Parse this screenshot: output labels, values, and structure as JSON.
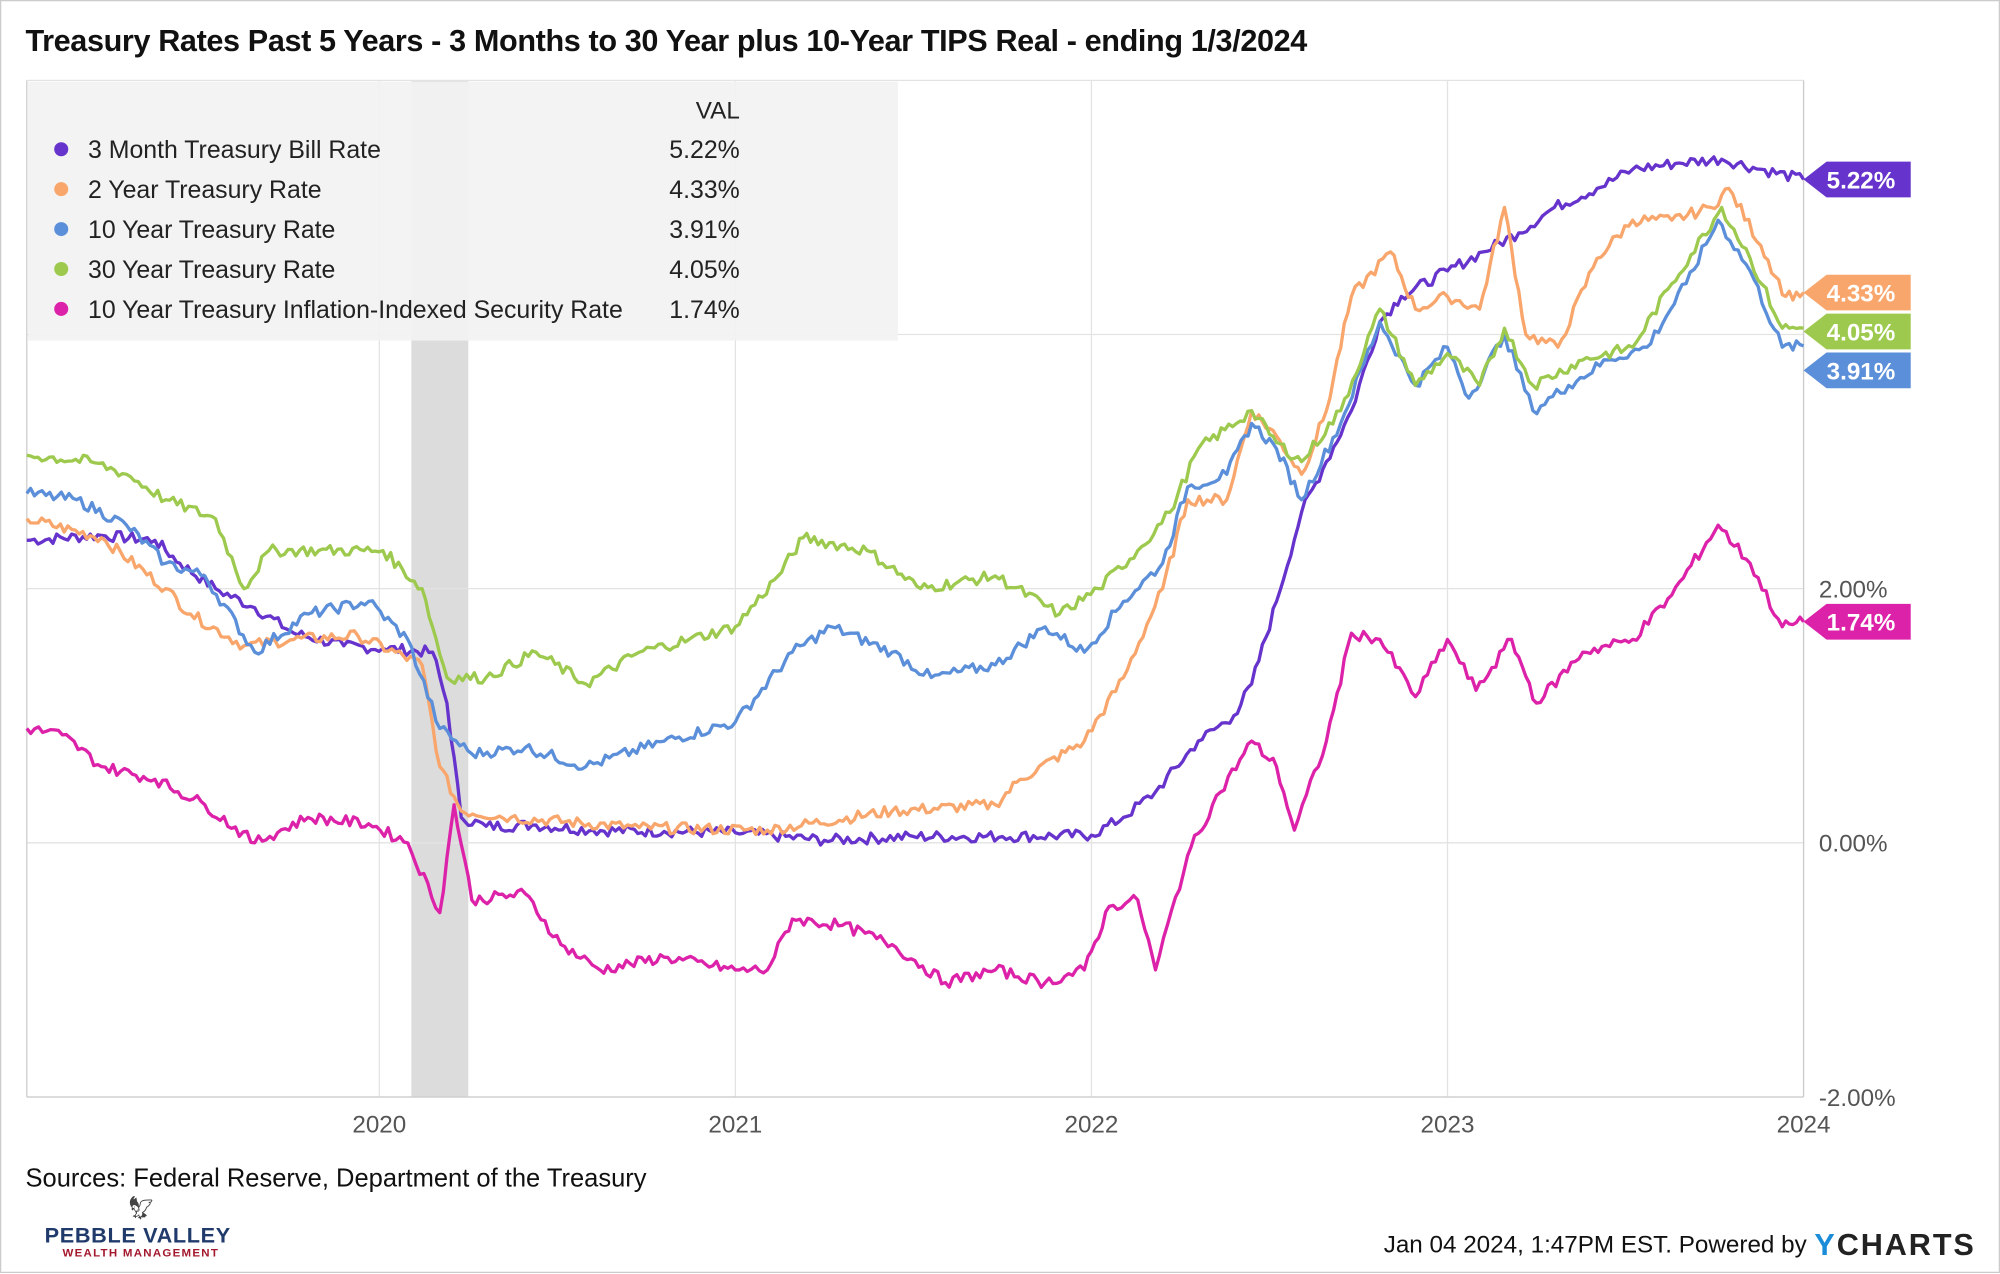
{
  "title": "Treasury Rates Past 5 Years - 3 Months to 30 Year plus 10-Year TIPS Real - ending 1/3/2024",
  "footer": {
    "sources": "Sources: Federal Reserve, Department of the Treasury",
    "logo_line1": "PEBBLE VALLEY",
    "logo_line2": "WEALTH MANAGEMENT",
    "timestamp": "Jan 04 2024, 1:47PM EST. Powered by",
    "brand": "YCHARTS"
  },
  "chart_data": {
    "type": "line",
    "title": "Treasury Rates Past 5 Years - 3 Months to 30 Year plus 10-Year TIPS Real - ending 1/3/2024",
    "xlabel": "",
    "ylabel": "",
    "xlim": [
      2019.01,
      2024.0
    ],
    "ylim": [
      -2,
      6
    ],
    "x_ticks": [
      {
        "v": 2020,
        "label": "2020"
      },
      {
        "v": 2021,
        "label": "2021"
      },
      {
        "v": 2022,
        "label": "2022"
      },
      {
        "v": 2023,
        "label": "2023"
      },
      {
        "v": 2024,
        "label": "2024"
      }
    ],
    "y_ticks": [
      {
        "v": -2,
        "label": "-2.00%"
      },
      {
        "v": 0,
        "label": "0.00%"
      },
      {
        "v": 2,
        "label": "2.00%"
      },
      {
        "v": 4,
        "label": ""
      },
      {
        "v": 6,
        "label": ""
      }
    ],
    "grid": true,
    "legend_placement": "top-left",
    "legend_header": "VAL",
    "recession_band": [
      2020.09,
      2020.25
    ],
    "series": [
      {
        "name": "3 Month Treasury Bill Rate",
        "last": "5.22%",
        "color": "#6633cc",
        "points": [
          [
            2019.01,
            2.38
          ],
          [
            2019.22,
            2.42
          ],
          [
            2019.37,
            2.38
          ],
          [
            2019.44,
            2.2
          ],
          [
            2019.54,
            2.0
          ],
          [
            2019.65,
            1.85
          ],
          [
            2019.76,
            1.65
          ],
          [
            2019.9,
            1.55
          ],
          [
            2020.01,
            1.53
          ],
          [
            2020.15,
            1.5
          ],
          [
            2020.19,
            1.1
          ],
          [
            2020.23,
            0.2
          ],
          [
            2020.3,
            0.13
          ],
          [
            2020.44,
            0.14
          ],
          [
            2020.6,
            0.1
          ],
          [
            2020.8,
            0.09
          ],
          [
            2021.0,
            0.08
          ],
          [
            2021.25,
            0.02
          ],
          [
            2021.5,
            0.05
          ],
          [
            2021.75,
            0.05
          ],
          [
            2022.0,
            0.06
          ],
          [
            2022.09,
            0.2
          ],
          [
            2022.18,
            0.4
          ],
          [
            2022.3,
            0.8
          ],
          [
            2022.4,
            1.0
          ],
          [
            2022.45,
            1.25
          ],
          [
            2022.52,
            1.9
          ],
          [
            2022.59,
            2.6
          ],
          [
            2022.66,
            3.0
          ],
          [
            2022.73,
            3.4
          ],
          [
            2022.81,
            4.1
          ],
          [
            2022.87,
            4.3
          ],
          [
            2023.0,
            4.5
          ],
          [
            2023.1,
            4.65
          ],
          [
            2023.2,
            4.8
          ],
          [
            2023.3,
            5.0
          ],
          [
            2023.42,
            5.15
          ],
          [
            2023.52,
            5.3
          ],
          [
            2023.65,
            5.35
          ],
          [
            2023.77,
            5.38
          ],
          [
            2023.88,
            5.3
          ],
          [
            2024.0,
            5.22
          ]
        ]
      },
      {
        "name": "2 Year Treasury Rate",
        "last": "4.33%",
        "color": "#f9a66c",
        "points": [
          [
            2019.01,
            2.55
          ],
          [
            2019.22,
            2.4
          ],
          [
            2019.4,
            2.0
          ],
          [
            2019.47,
            1.8
          ],
          [
            2019.62,
            1.55
          ],
          [
            2019.76,
            1.6
          ],
          [
            2019.94,
            1.63
          ],
          [
            2020.12,
            1.4
          ],
          [
            2020.17,
            0.6
          ],
          [
            2020.23,
            0.25
          ],
          [
            2020.37,
            0.2
          ],
          [
            2020.73,
            0.12
          ],
          [
            2021.09,
            0.1
          ],
          [
            2021.44,
            0.25
          ],
          [
            2021.73,
            0.3
          ],
          [
            2021.8,
            0.5
          ],
          [
            2021.98,
            0.8
          ],
          [
            2022.09,
            1.3
          ],
          [
            2022.2,
            2.0
          ],
          [
            2022.27,
            2.7
          ],
          [
            2022.38,
            2.7
          ],
          [
            2022.45,
            3.4
          ],
          [
            2022.52,
            3.2
          ],
          [
            2022.59,
            2.9
          ],
          [
            2022.66,
            3.4
          ],
          [
            2022.73,
            4.3
          ],
          [
            2022.84,
            4.65
          ],
          [
            2022.91,
            4.2
          ],
          [
            2023.0,
            4.3
          ],
          [
            2023.09,
            4.2
          ],
          [
            2023.16,
            5.0
          ],
          [
            2023.22,
            4.0
          ],
          [
            2023.31,
            3.9
          ],
          [
            2023.42,
            4.6
          ],
          [
            2023.52,
            4.9
          ],
          [
            2023.63,
            4.9
          ],
          [
            2023.74,
            5.0
          ],
          [
            2023.79,
            5.15
          ],
          [
            2023.88,
            4.7
          ],
          [
            2023.95,
            4.3
          ],
          [
            2024.0,
            4.33
          ]
        ]
      },
      {
        "name": "10 Year Treasury Rate",
        "last": "3.91%",
        "color": "#5b8fd9",
        "points": [
          [
            2019.01,
            2.75
          ],
          [
            2019.15,
            2.7
          ],
          [
            2019.29,
            2.5
          ],
          [
            2019.4,
            2.2
          ],
          [
            2019.51,
            2.1
          ],
          [
            2019.65,
            1.5
          ],
          [
            2019.8,
            1.8
          ],
          [
            2019.97,
            1.9
          ],
          [
            2020.08,
            1.6
          ],
          [
            2020.17,
            0.9
          ],
          [
            2020.26,
            0.7
          ],
          [
            2020.41,
            0.75
          ],
          [
            2020.58,
            0.6
          ],
          [
            2020.8,
            0.8
          ],
          [
            2021.0,
            0.95
          ],
          [
            2021.16,
            1.5
          ],
          [
            2021.27,
            1.7
          ],
          [
            2021.44,
            1.5
          ],
          [
            2021.55,
            1.3
          ],
          [
            2021.73,
            1.4
          ],
          [
            2021.87,
            1.7
          ],
          [
            2021.98,
            1.5
          ],
          [
            2022.09,
            1.9
          ],
          [
            2022.2,
            2.2
          ],
          [
            2022.27,
            2.8
          ],
          [
            2022.38,
            2.9
          ],
          [
            2022.45,
            3.3
          ],
          [
            2022.52,
            3.1
          ],
          [
            2022.59,
            2.7
          ],
          [
            2022.7,
            3.3
          ],
          [
            2022.81,
            4.1
          ],
          [
            2022.91,
            3.6
          ],
          [
            2023.0,
            3.9
          ],
          [
            2023.06,
            3.5
          ],
          [
            2023.16,
            4.0
          ],
          [
            2023.24,
            3.4
          ],
          [
            2023.34,
            3.6
          ],
          [
            2023.45,
            3.8
          ],
          [
            2023.56,
            3.9
          ],
          [
            2023.67,
            4.4
          ],
          [
            2023.76,
            4.9
          ],
          [
            2023.85,
            4.5
          ],
          [
            2023.94,
            3.9
          ],
          [
            2024.0,
            3.91
          ]
        ]
      },
      {
        "name": "30 Year Treasury Rate",
        "last": "4.05%",
        "color": "#9dca4e",
        "points": [
          [
            2019.01,
            3.05
          ],
          [
            2019.19,
            3.0
          ],
          [
            2019.29,
            2.9
          ],
          [
            2019.4,
            2.7
          ],
          [
            2019.54,
            2.55
          ],
          [
            2019.62,
            2.0
          ],
          [
            2019.69,
            2.3
          ],
          [
            2019.83,
            2.3
          ],
          [
            2020.01,
            2.3
          ],
          [
            2020.12,
            2.0
          ],
          [
            2020.19,
            1.3
          ],
          [
            2020.3,
            1.3
          ],
          [
            2020.44,
            1.5
          ],
          [
            2020.58,
            1.25
          ],
          [
            2020.73,
            1.5
          ],
          [
            2020.87,
            1.6
          ],
          [
            2021.0,
            1.7
          ],
          [
            2021.12,
            2.1
          ],
          [
            2021.19,
            2.4
          ],
          [
            2021.37,
            2.3
          ],
          [
            2021.52,
            2.0
          ],
          [
            2021.73,
            2.1
          ],
          [
            2021.91,
            1.8
          ],
          [
            2022.02,
            2.0
          ],
          [
            2022.13,
            2.3
          ],
          [
            2022.22,
            2.6
          ],
          [
            2022.3,
            3.1
          ],
          [
            2022.45,
            3.4
          ],
          [
            2022.52,
            3.15
          ],
          [
            2022.59,
            3.0
          ],
          [
            2022.7,
            3.4
          ],
          [
            2022.81,
            4.2
          ],
          [
            2022.91,
            3.6
          ],
          [
            2023.0,
            3.85
          ],
          [
            2023.09,
            3.6
          ],
          [
            2023.16,
            4.05
          ],
          [
            2023.24,
            3.6
          ],
          [
            2023.38,
            3.8
          ],
          [
            2023.52,
            3.9
          ],
          [
            2023.63,
            4.4
          ],
          [
            2023.77,
            5.0
          ],
          [
            2023.85,
            4.6
          ],
          [
            2023.94,
            4.05
          ],
          [
            2024.0,
            4.05
          ]
        ]
      },
      {
        "name": "10 Year Treasury Inflation-Indexed Security Rate",
        "last": "1.74%",
        "color": "#dd22aa",
        "points": [
          [
            2019.01,
            0.9
          ],
          [
            2019.11,
            0.85
          ],
          [
            2019.22,
            0.6
          ],
          [
            2019.37,
            0.5
          ],
          [
            2019.51,
            0.3
          ],
          [
            2019.65,
            0.0
          ],
          [
            2019.8,
            0.2
          ],
          [
            2019.97,
            0.15
          ],
          [
            2020.08,
            0.0
          ],
          [
            2020.17,
            -0.55
          ],
          [
            2020.21,
            0.3
          ],
          [
            2020.26,
            -0.45
          ],
          [
            2020.41,
            -0.4
          ],
          [
            2020.51,
            -0.8
          ],
          [
            2020.62,
            -1.0
          ],
          [
            2020.8,
            -0.9
          ],
          [
            2021.0,
            -1.0
          ],
          [
            2021.09,
            -1.0
          ],
          [
            2021.16,
            -0.6
          ],
          [
            2021.3,
            -0.65
          ],
          [
            2021.44,
            -0.8
          ],
          [
            2021.59,
            -1.1
          ],
          [
            2021.73,
            -1.0
          ],
          [
            2021.87,
            -1.1
          ],
          [
            2021.98,
            -1.0
          ],
          [
            2022.05,
            -0.5
          ],
          [
            2022.13,
            -0.45
          ],
          [
            2022.18,
            -1.0
          ],
          [
            2022.27,
            -0.1
          ],
          [
            2022.34,
            0.3
          ],
          [
            2022.45,
            0.8
          ],
          [
            2022.52,
            0.6
          ],
          [
            2022.57,
            0.1
          ],
          [
            2022.66,
            0.8
          ],
          [
            2022.73,
            1.65
          ],
          [
            2022.81,
            1.6
          ],
          [
            2022.91,
            1.15
          ],
          [
            2023.0,
            1.6
          ],
          [
            2023.08,
            1.2
          ],
          [
            2023.18,
            1.6
          ],
          [
            2023.25,
            1.1
          ],
          [
            2023.38,
            1.5
          ],
          [
            2023.52,
            1.6
          ],
          [
            2023.63,
            1.95
          ],
          [
            2023.76,
            2.5
          ],
          [
            2023.85,
            2.2
          ],
          [
            2023.94,
            1.7
          ],
          [
            2024.0,
            1.74
          ]
        ]
      }
    ]
  }
}
